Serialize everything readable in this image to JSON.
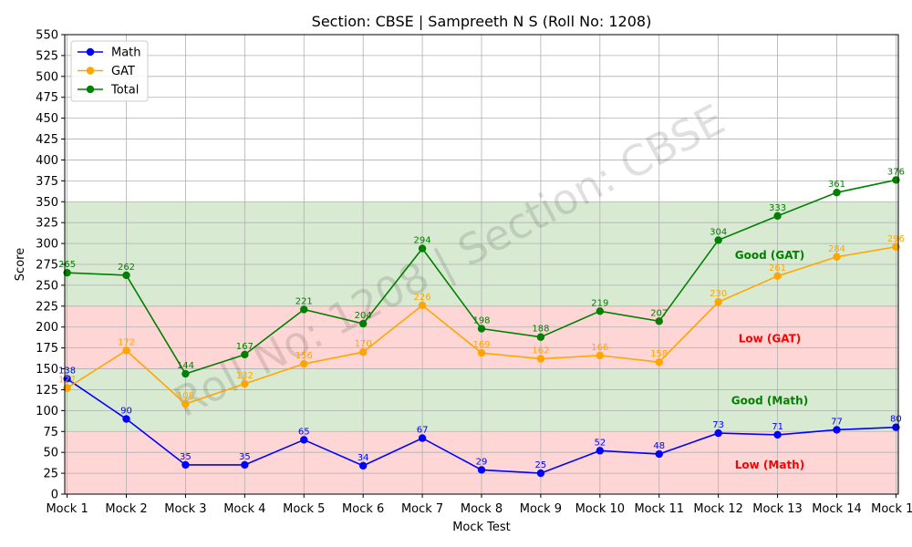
{
  "chart_data": {
    "type": "line",
    "title": "Section: CBSE | Sampreeth N S (Roll No: 1208)",
    "xlabel": "Mock Test",
    "ylabel": "Score",
    "ylim": [
      0,
      550
    ],
    "ytick_step": 25,
    "grid": true,
    "legend_position": "top-left",
    "categories": [
      "Mock 1",
      "Mock 2",
      "Mock 3",
      "Mock 4",
      "Mock 5",
      "Mock 6",
      "Mock 7",
      "Mock 8",
      "Mock 9",
      "Mock 10",
      "Mock 11",
      "Mock 12",
      "Mock 13",
      "Mock 14",
      "Mock 15"
    ],
    "series": [
      {
        "name": "Math",
        "color": "#0000ff",
        "values": [
          138,
          90,
          35,
          35,
          65,
          34,
          67,
          29,
          25,
          52,
          48,
          73,
          71,
          77,
          80
        ]
      },
      {
        "name": "GAT",
        "color": "#ffa500",
        "values": [
          127,
          172,
          108,
          132,
          156,
          170,
          226,
          169,
          162,
          166,
          158,
          230,
          261,
          284,
          296
        ]
      },
      {
        "name": "Total",
        "color": "#008000",
        "values": [
          265,
          262,
          144,
          167,
          221,
          204,
          294,
          198,
          188,
          219,
          207,
          304,
          333,
          361,
          376
        ]
      }
    ],
    "zones": [
      {
        "label": "Low (Math)",
        "from": 0,
        "to": 75,
        "color": "#ffd6d6",
        "text_color": "#ff0000",
        "label_y": 35
      },
      {
        "label": "Good (Math)",
        "from": 75,
        "to": 150,
        "color": "#d9ead3",
        "text_color": "#008000",
        "label_y": 112
      },
      {
        "label": "Low (GAT)",
        "from": 150,
        "to": 225,
        "color": "#ffd6d6",
        "text_color": "#ff0000",
        "label_y": 186
      },
      {
        "label": "Good (GAT)",
        "from": 225,
        "to": 350,
        "color": "#d9ead3",
        "text_color": "#008000",
        "label_y": 286
      }
    ],
    "watermark": "Roll No: 1208 | Section: CBSE"
  }
}
